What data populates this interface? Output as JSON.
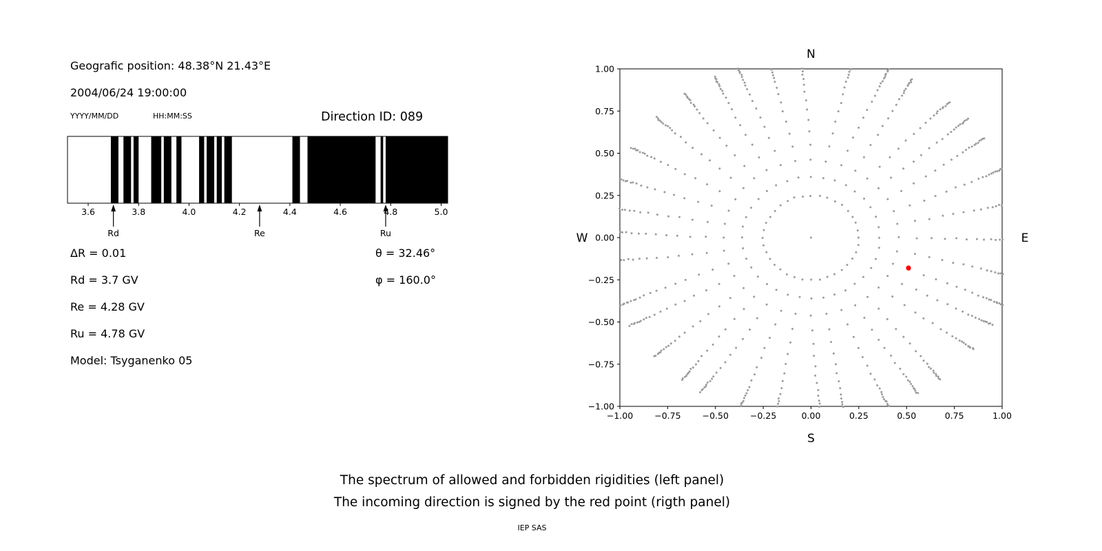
{
  "header": {
    "geographic_position": "Geografic position: 48.38°N 21.43°E",
    "datetime": "2004/06/24 19:00:00",
    "date_format": "YYYY/MM/DD",
    "time_format": "HH:MM:SS",
    "direction_id": "Direction ID: 089"
  },
  "parameters": {
    "delta_r": "ΔR = 0.01",
    "rd": "Rd = 3.7 GV",
    "re": "Re = 4.28 GV",
    "ru": "Ru = 4.78 GV",
    "model": "Model: Tsyganenko 05",
    "theta": "θ = 32.46°",
    "phi": "φ = 160.0°"
  },
  "caption": {
    "line1": "The spectrum of allowed and forbidden rigidities (left panel)",
    "line2": "The incoming direction is signed by the red point (rigth panel)",
    "credit": "IEP SAS"
  },
  "chart_data": [
    {
      "type": "bar",
      "subtype": "rigidity-barcode-spectrum",
      "xlim": [
        3.518,
        5.026
      ],
      "xtick_values": [
        3.6,
        3.8,
        4.0,
        4.2,
        4.4,
        4.6,
        4.8,
        5.0
      ],
      "xtick_labels": [
        "3.6",
        "3.8",
        "4.0",
        "4.2",
        "4.4",
        "4.6",
        "4.8",
        "5.0"
      ],
      "forbidden_bands_gv": [
        [
          3.69,
          3.72
        ],
        [
          3.74,
          3.77
        ],
        [
          3.78,
          3.8
        ],
        [
          3.85,
          3.89
        ],
        [
          3.9,
          3.93
        ],
        [
          3.95,
          3.97
        ],
        [
          4.04,
          4.06
        ],
        [
          4.07,
          4.1
        ],
        [
          4.11,
          4.13
        ],
        [
          4.14,
          4.17
        ],
        [
          4.41,
          4.44
        ],
        [
          4.47,
          4.74
        ],
        [
          4.76,
          4.77
        ],
        [
          4.78,
          5.03
        ]
      ],
      "markers": [
        {
          "label": "Rd",
          "value": 3.7
        },
        {
          "label": "Re",
          "value": 4.28
        },
        {
          "label": "Ru",
          "value": 4.78
        }
      ],
      "bar_color": "#000000",
      "background": "#ffffff"
    },
    {
      "type": "scatter",
      "subtype": "incoming-direction-map",
      "xlim": [
        -1,
        1
      ],
      "ylim": [
        -1,
        1
      ],
      "xtick_values": [
        -1.0,
        -0.75,
        -0.5,
        -0.25,
        0.0,
        0.25,
        0.5,
        0.75,
        1.0
      ],
      "xtick_labels": [
        "−1.00",
        "−0.75",
        "−0.50",
        "−0.25",
        "0.00",
        "0.25",
        "0.50",
        "0.75",
        "1.00"
      ],
      "ytick_values": [
        -1.0,
        -0.75,
        -0.5,
        -0.25,
        0.0,
        0.25,
        0.5,
        0.75,
        1.0
      ],
      "ytick_labels": [
        "−1.00",
        "−0.75",
        "−0.50",
        "−0.25",
        "0.00",
        "0.25",
        "0.50",
        "0.75",
        "1.00"
      ],
      "compass": {
        "north": "N",
        "south": "S",
        "east": "E",
        "west": "W"
      },
      "spokes": {
        "count": 36,
        "azimuth_step_deg": 10,
        "radii": [
          0.25,
          0.36,
          0.46,
          0.55,
          0.63,
          0.7,
          0.76,
          0.815,
          0.865,
          0.905,
          0.94,
          0.965,
          0.985,
          1.0,
          1.015,
          1.03,
          1.04,
          1.05,
          1.06,
          1.07,
          1.08
        ]
      },
      "center_dot": {
        "x": 0.0,
        "y": 0.0
      },
      "dot_color": "#9c9c9c",
      "red_point": {
        "x": 0.51,
        "y": -0.18,
        "color": "#ff0000"
      }
    }
  ]
}
